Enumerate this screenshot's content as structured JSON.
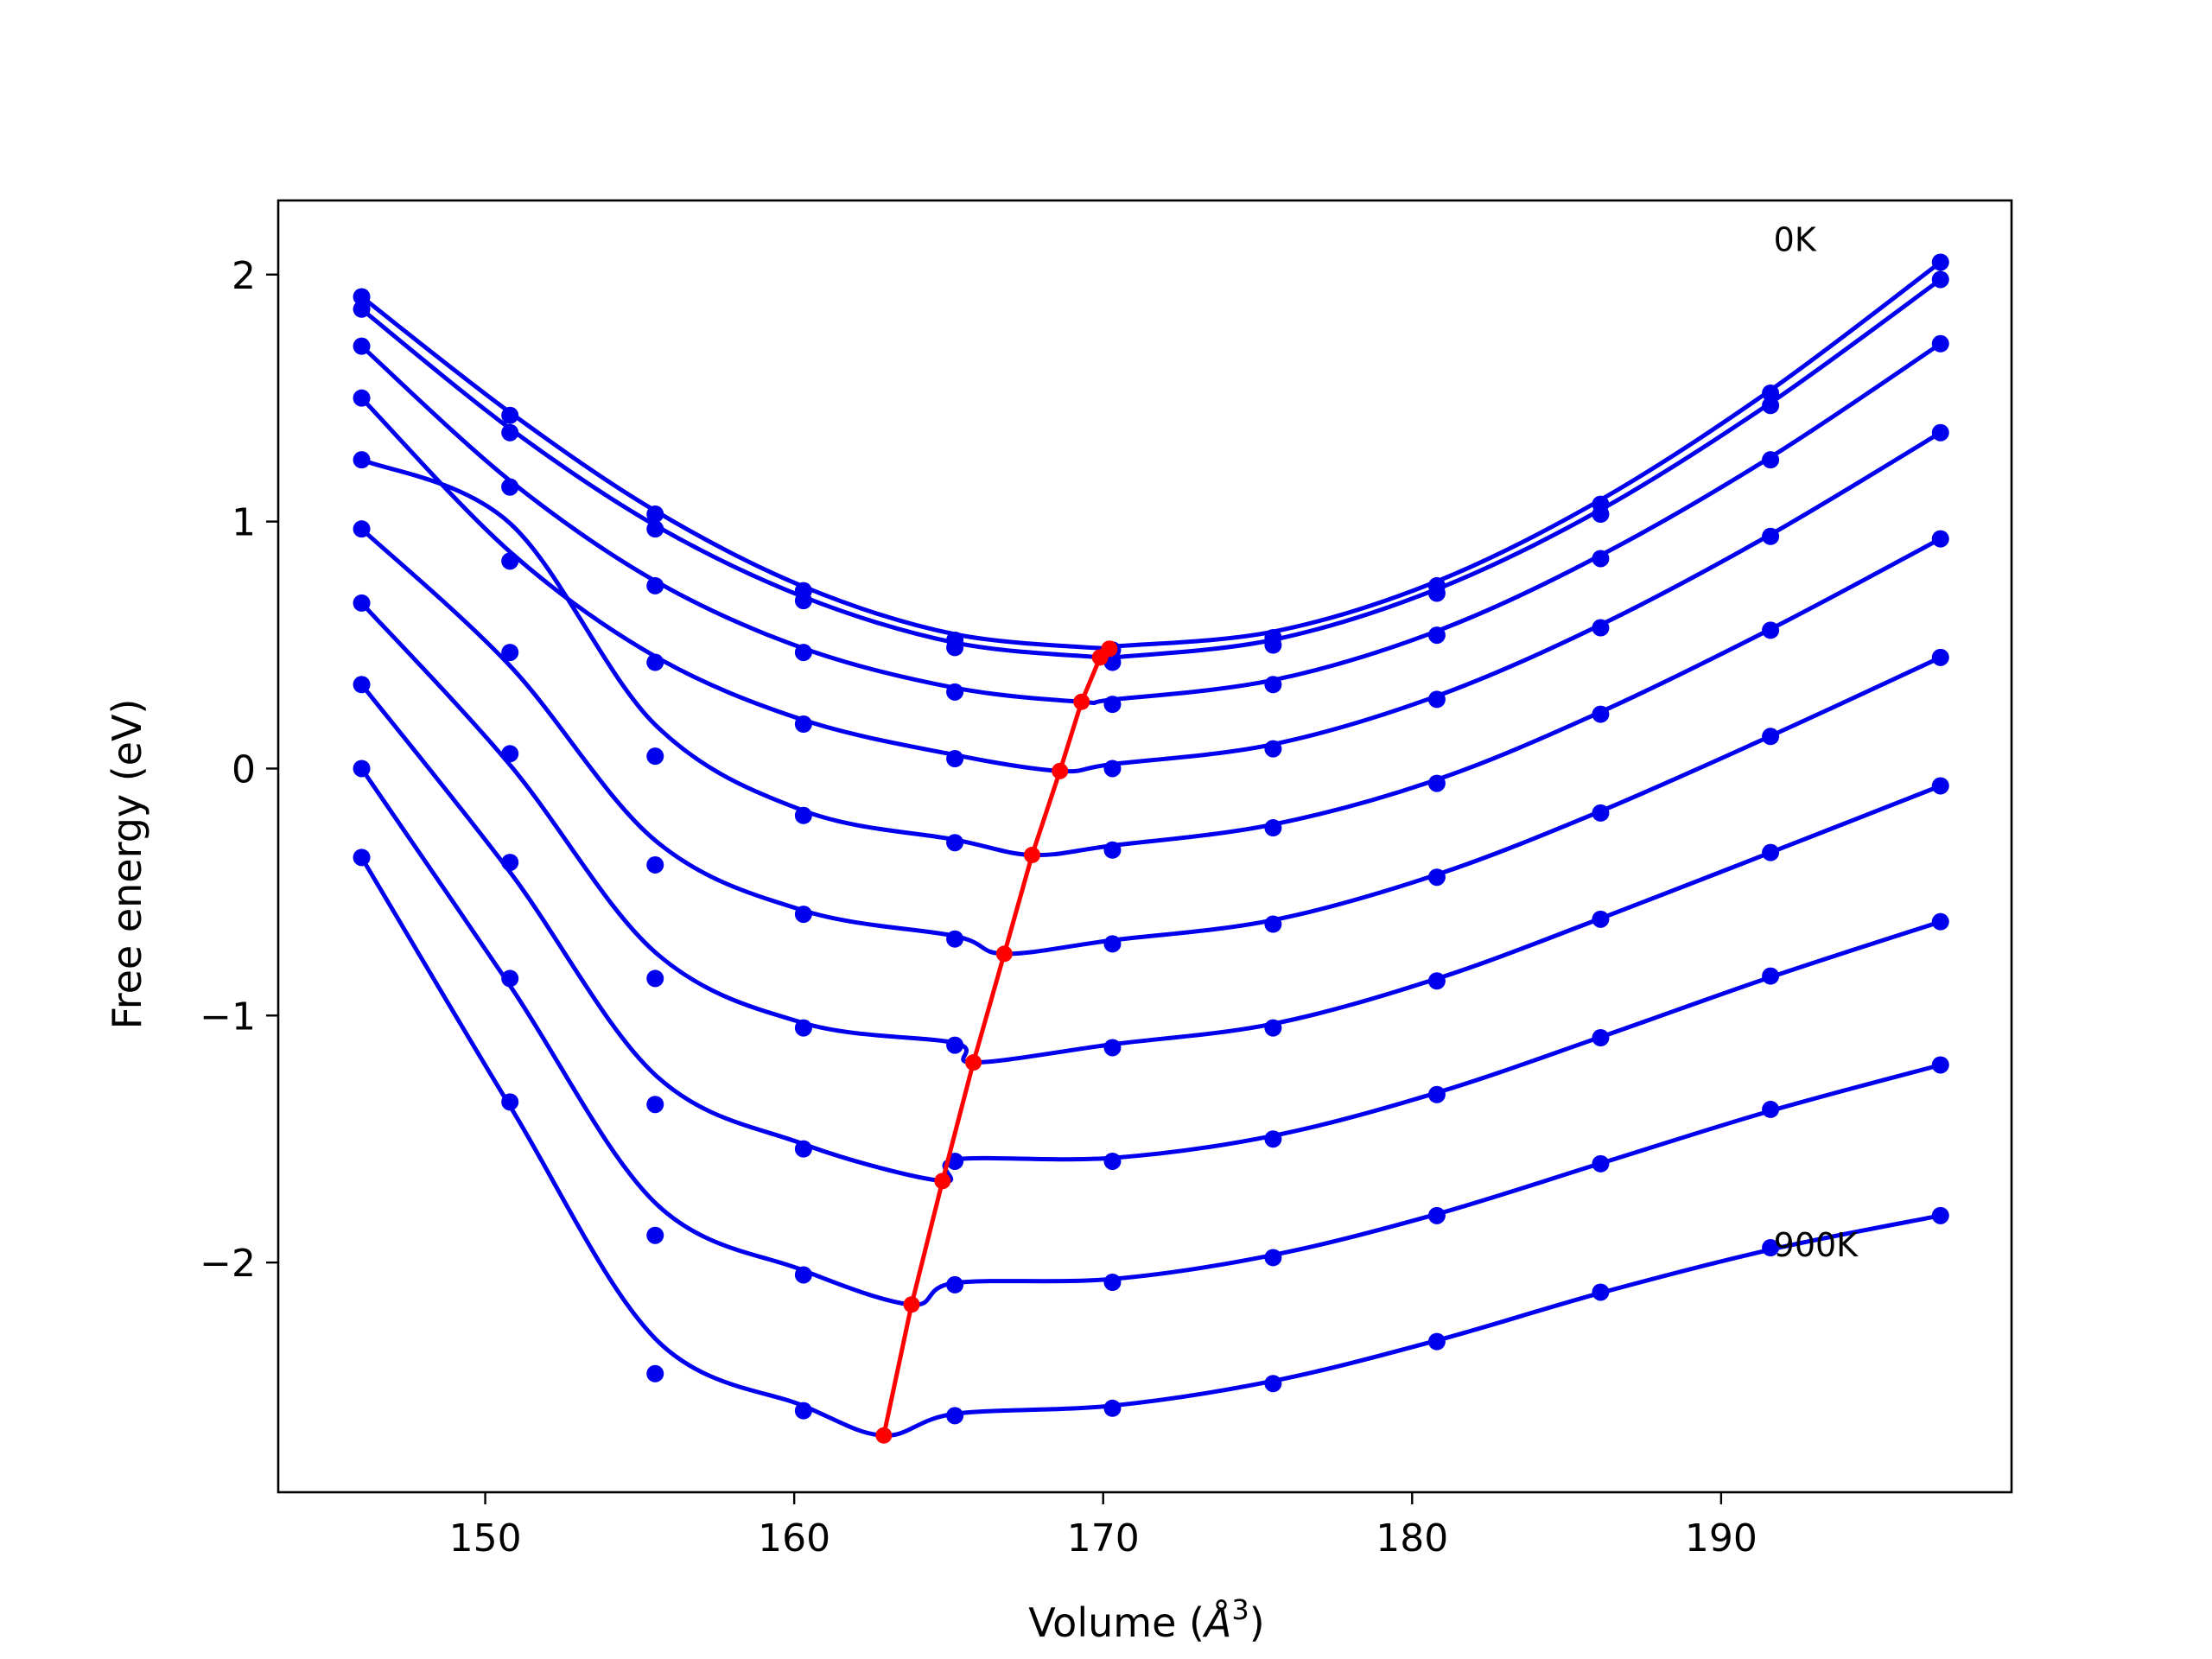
{
  "chart_data": {
    "type": "line",
    "title": "",
    "xlabel": "Volume (",
    "xlabel_symbol": "Å",
    "xlabel_exp": "3",
    "xlabel_close": ")",
    "ylabel": "Free energy (eV)",
    "xlim": [
      143.3,
      199.4
    ],
    "ylim": [
      -2.93,
      2.3
    ],
    "xticks": [
      150,
      160,
      170,
      180,
      190
    ],
    "xtick_labels": [
      "150",
      "160",
      "170",
      "180",
      "190"
    ],
    "yticks": [
      2,
      1,
      0,
      -1,
      -2
    ],
    "ytick_labels": [
      "2",
      "1",
      "0",
      "−1",
      "−2"
    ],
    "grid": false,
    "annotations": [
      {
        "text": "0K",
        "x": 191.7,
        "y": 2.14
      },
      {
        "text": "900K",
        "x": 191.7,
        "y": -1.93
      }
    ],
    "colors": {
      "fit": "#0000ee",
      "points": "#0000ee",
      "minima": "#ff0000"
    },
    "x": [
      146,
      150.8,
      155.5,
      160.3,
      165.2,
      170.3,
      175.5,
      180.8,
      186.1,
      191.6,
      197.1
    ],
    "series": [
      {
        "values": [
          1.91,
          1.43,
          1.03,
          0.72,
          0.52,
          0.48,
          0.53,
          0.74,
          1.07,
          1.52,
          2.05
        ],
        "fit_min": [
          170.2,
          0.485
        ]
      },
      {
        "values": [
          1.86,
          1.36,
          0.97,
          0.68,
          0.49,
          0.43,
          0.5,
          0.71,
          1.03,
          1.47,
          1.98
        ],
        "fit_min": [
          169.9,
          0.45
        ]
      },
      {
        "values": [
          1.71,
          1.14,
          0.74,
          0.47,
          0.31,
          0.26,
          0.34,
          0.54,
          0.85,
          1.25,
          1.72
        ],
        "fit_min": [
          169.3,
          0.27
        ]
      },
      {
        "values": [
          1.5,
          0.84,
          0.43,
          0.18,
          0.04,
          0.0,
          0.08,
          0.28,
          0.57,
          0.94,
          1.36
        ],
        "fit_min": [
          168.6,
          -0.01
        ]
      },
      {
        "values": [
          1.25,
          1.14,
          0.05,
          -0.19,
          -0.3,
          -0.33,
          -0.24,
          -0.06,
          0.22,
          0.56,
          0.93
        ],
        "fit_min": [
          167.7,
          -0.35
        ],
        "note": ""
      },
      {
        "values": [
          0.97,
          0.47,
          -0.39,
          -0.59,
          -0.69,
          -0.71,
          -0.63,
          -0.44,
          -0.18,
          0.13,
          0.45
        ],
        "fit_min": [
          166.8,
          -0.75
        ]
      },
      {
        "values": [
          0.67,
          0.06,
          -0.85,
          -1.05,
          -1.12,
          -1.13,
          -1.05,
          -0.86,
          -0.61,
          -0.34,
          -0.07
        ],
        "fit_min": [
          165.8,
          -1.19
        ]
      },
      {
        "values": [
          0.34,
          -0.38,
          -1.36,
          -1.54,
          -1.59,
          -1.59,
          -1.5,
          -1.32,
          -1.09,
          -0.84,
          -0.62
        ],
        "fit_min": [
          164.8,
          -1.67
        ]
      },
      {
        "values": [
          0.0,
          -0.85,
          -1.89,
          -2.05,
          -2.09,
          -2.08,
          -1.98,
          -1.81,
          -1.6,
          -1.38,
          -1.2
        ],
        "fit_min": [
          163.8,
          -2.17
        ]
      },
      {
        "values": [
          -0.36,
          -1.35,
          -2.45,
          -2.6,
          -2.62,
          -2.59,
          -2.49,
          -2.32,
          -2.12,
          -1.94,
          -1.81
        ],
        "fit_min": [
          162.9,
          -2.7
        ]
      }
    ],
    "minima": {
      "x": [
        170.2,
        169.9,
        169.3,
        168.6,
        167.7,
        166.8,
        165.8,
        164.8,
        163.8,
        162.9
      ],
      "y": [
        0.485,
        0.45,
        0.27,
        -0.01,
        -0.35,
        -0.75,
        -1.19,
        -1.67,
        -2.17,
        -2.7
      ]
    }
  }
}
